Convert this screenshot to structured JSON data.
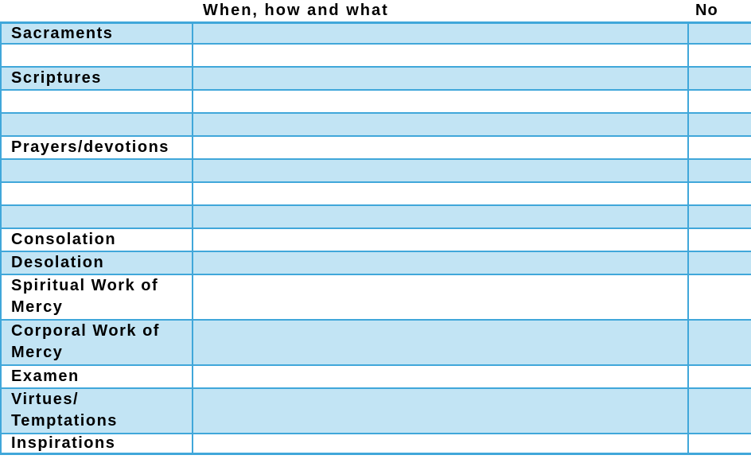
{
  "colors": {
    "border": "#40a7da",
    "fill": "#c2e4f4",
    "text": "#000000",
    "background": "#ffffff"
  },
  "headers": {
    "when_how_what": "When, how and what",
    "no": "No"
  },
  "table": {
    "rows": [
      {
        "label": "Sacraments",
        "shaded": true,
        "tall": false
      },
      {
        "label": "",
        "shaded": false,
        "tall": false
      },
      {
        "label": "Scriptures",
        "shaded": true,
        "tall": false
      },
      {
        "label": "",
        "shaded": false,
        "tall": false
      },
      {
        "label": "",
        "shaded": true,
        "tall": false
      },
      {
        "label": "Prayers/devotions",
        "shaded": false,
        "tall": false
      },
      {
        "label": "",
        "shaded": true,
        "tall": false
      },
      {
        "label": "",
        "shaded": false,
        "tall": false
      },
      {
        "label": "",
        "shaded": true,
        "tall": false
      },
      {
        "label": "Consolation",
        "shaded": false,
        "tall": false
      },
      {
        "label": "Desolation",
        "shaded": true,
        "tall": false
      },
      {
        "label": "Spiritual Work of\nMercy",
        "shaded": false,
        "tall": true
      },
      {
        "label": "Corporal Work of\nMercy",
        "shaded": true,
        "tall": true
      },
      {
        "label": "Examen",
        "shaded": false,
        "tall": false
      },
      {
        "label": "Virtues/\nTemptations",
        "shaded": true,
        "tall": true
      },
      {
        "label": "Inspirations",
        "shaded": false,
        "tall": false
      }
    ]
  }
}
